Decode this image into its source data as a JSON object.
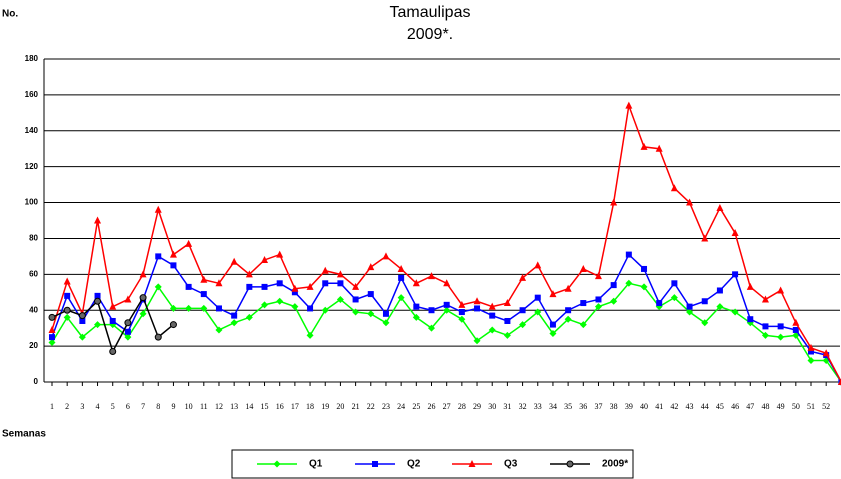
{
  "chart_data": {
    "type": "line",
    "title": "Tamaulipas",
    "subtitle": "2009*.",
    "y_label": "No.",
    "x_label": "Semanas",
    "categories": [
      "1",
      "2",
      "3",
      "4",
      "5",
      "6",
      "7",
      "8",
      "9",
      "10",
      "11",
      "12",
      "13",
      "14",
      "15",
      "16",
      "17",
      "18",
      "19",
      "20",
      "21",
      "22",
      "23",
      "24",
      "25",
      "26",
      "27",
      "28",
      "29",
      "30",
      "31",
      "32",
      "33",
      "34",
      "35",
      "36",
      "37",
      "38",
      "39",
      "40",
      "41",
      "42",
      "43",
      "44",
      "45",
      "46",
      "47",
      "48",
      "49",
      "50",
      "51",
      "52",
      null
    ],
    "series": [
      {
        "name": "Q1",
        "color": "#00ff00",
        "marker": "diamond",
        "values": [
          22,
          36,
          25,
          32,
          32,
          25,
          38,
          53,
          41,
          41,
          41,
          29,
          33,
          36,
          43,
          45,
          42,
          26,
          40,
          46,
          39,
          38,
          33,
          47,
          36,
          30,
          40,
          35,
          23,
          29,
          26,
          32,
          39,
          27,
          35,
          32,
          42,
          45,
          55,
          53,
          42,
          47,
          39,
          33,
          42,
          39,
          33,
          26,
          25,
          26,
          12,
          12,
          0
        ]
      },
      {
        "name": "Q2",
        "color": "#0000ff",
        "marker": "square",
        "values": [
          25,
          48,
          34,
          48,
          34,
          28,
          46,
          70,
          65,
          53,
          49,
          41,
          37,
          53,
          53,
          55,
          50,
          41,
          55,
          55,
          46,
          49,
          38,
          58,
          42,
          40,
          43,
          39,
          41,
          37,
          34,
          40,
          47,
          32,
          40,
          44,
          46,
          54,
          71,
          63,
          44,
          55,
          42,
          45,
          51,
          60,
          35,
          31,
          31,
          29,
          17,
          15,
          0
        ]
      },
      {
        "name": "Q3",
        "color": "#ff0000",
        "marker": "triangle",
        "values": [
          29,
          56,
          38,
          90,
          42,
          46,
          60,
          96,
          71,
          77,
          57,
          55,
          67,
          60,
          68,
          71,
          52,
          53,
          62,
          60,
          53,
          64,
          70,
          63,
          55,
          59,
          55,
          43,
          45,
          42,
          44,
          58,
          65,
          49,
          52,
          63,
          59,
          100,
          154,
          131,
          130,
          108,
          100,
          80,
          97,
          83,
          53,
          46,
          51,
          33,
          19,
          16,
          0
        ]
      },
      {
        "name": "2009*",
        "color": "#000000",
        "marker": "circle",
        "values": [
          36,
          40,
          37,
          45,
          17,
          33,
          47,
          25,
          32,
          null,
          null,
          null,
          null,
          null,
          null,
          null,
          null,
          null,
          null,
          null,
          null,
          null,
          null,
          null,
          null,
          null,
          null,
          null,
          null,
          null,
          null,
          null,
          null,
          null,
          null,
          null,
          null,
          null,
          null,
          null,
          null,
          null,
          null,
          null,
          null,
          null,
          null,
          null,
          null,
          null,
          null,
          null,
          null
        ]
      }
    ],
    "ylim": [
      0,
      180
    ],
    "yticks": [
      0,
      20,
      40,
      60,
      80,
      100,
      120,
      140,
      160,
      180
    ],
    "grid": true
  }
}
